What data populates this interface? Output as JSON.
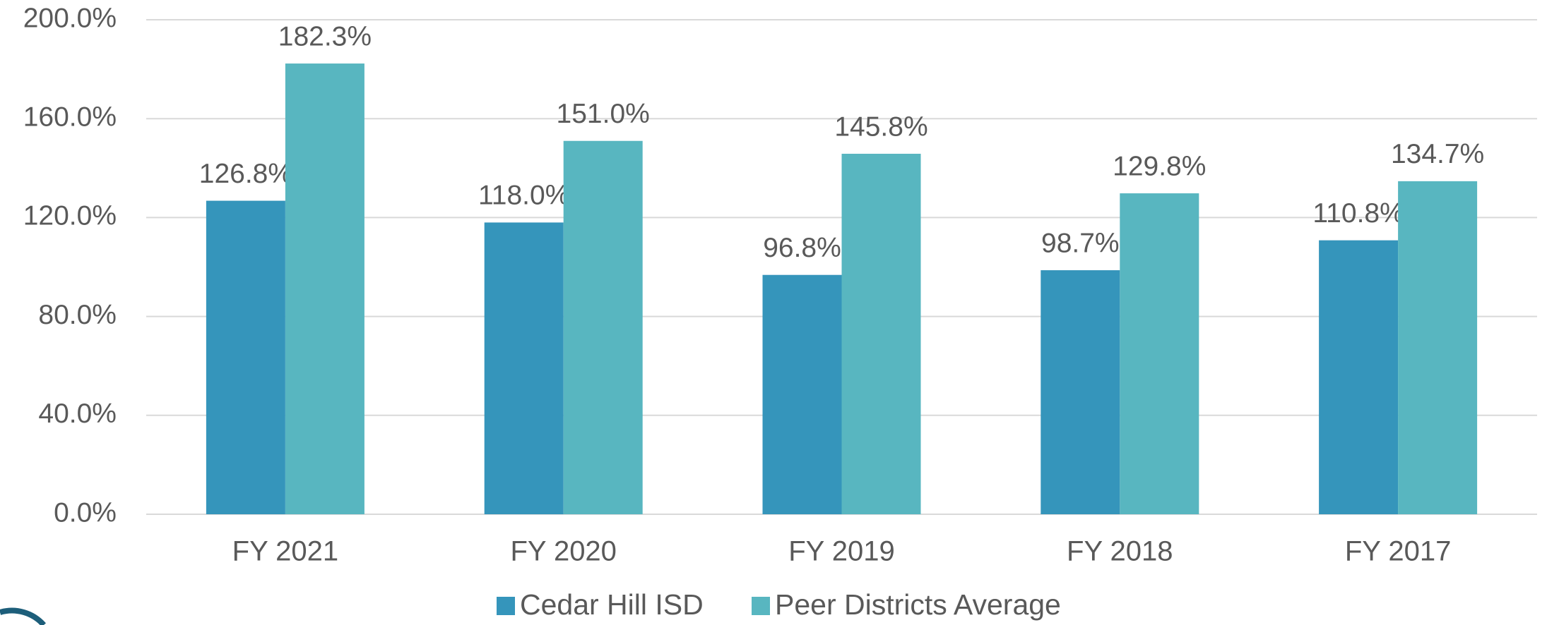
{
  "chart_data": {
    "type": "bar",
    "categories": [
      "FY 2021",
      "FY 2020",
      "FY 2019",
      "FY 2018",
      "FY 2017"
    ],
    "series": [
      {
        "name": "Cedar Hill ISD",
        "color": "#3595bb",
        "values": [
          126.8,
          118.0,
          96.8,
          98.7,
          110.8
        ],
        "value_labels": [
          "126.8%",
          "118.0%",
          "96.8%",
          "98.7%",
          "110.8%"
        ]
      },
      {
        "name": "Peer Districts Average",
        "color": "#58b6c0",
        "values": [
          182.3,
          151.0,
          145.8,
          129.8,
          134.7
        ],
        "value_labels": [
          "182.3%",
          "151.0%",
          "145.8%",
          "129.8%",
          "134.7%"
        ]
      }
    ],
    "ylim": [
      0,
      200
    ],
    "yticks": [
      {
        "value": 0,
        "label": "0.0%"
      },
      {
        "value": 40,
        "label": "40.0%"
      },
      {
        "value": 80,
        "label": "80.0%"
      },
      {
        "value": 120,
        "label": "120.0%"
      },
      {
        "value": 160,
        "label": "160.0%"
      },
      {
        "value": 200,
        "label": "200.0%"
      }
    ],
    "grid": true,
    "legend": "bottom"
  }
}
